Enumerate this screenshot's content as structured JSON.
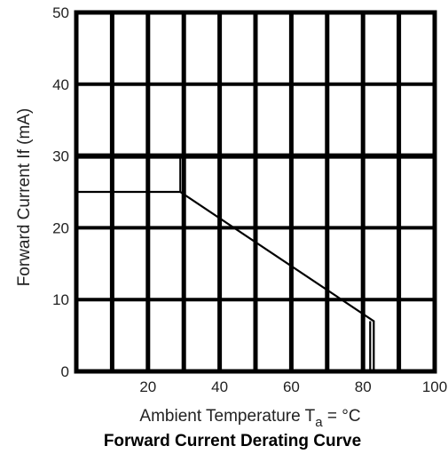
{
  "chart_data": {
    "type": "line",
    "title": "Forward Current Derating Curve",
    "xlabel": {
      "main": "Ambient Temperature T",
      "subscript": "a",
      "suffix": " = °C"
    },
    "ylabel": "Forward Current If (mA)",
    "xlim": [
      0,
      100
    ],
    "ylim": [
      0,
      50
    ],
    "x_ticks": [
      {
        "value": 20,
        "label": "20"
      },
      {
        "value": 40,
        "label": "40"
      },
      {
        "value": 60,
        "label": "60"
      },
      {
        "value": 80,
        "label": "80"
      },
      {
        "value": 100,
        "label": "100"
      }
    ],
    "y_ticks": [
      {
        "value": 0,
        "label": "0"
      },
      {
        "value": 10,
        "label": "10"
      },
      {
        "value": 20,
        "label": "20"
      },
      {
        "value": 30,
        "label": "30"
      },
      {
        "value": 40,
        "label": "40"
      },
      {
        "value": 50,
        "label": "50"
      }
    ],
    "grid": true,
    "grid_x_values": [
      10,
      20,
      30,
      40,
      50,
      60,
      70,
      80,
      90
    ],
    "grid_y_values": [
      10,
      20,
      30,
      40
    ],
    "series": [
      {
        "x": [
          0,
          29,
          83,
          83,
          82,
          82
        ],
        "y": [
          25,
          25,
          7,
          0,
          0,
          7
        ],
        "color": "#000000"
      }
    ],
    "annotation_segments": [
      {
        "x": [
          29,
          29
        ],
        "y": [
          25,
          30
        ],
        "color": "#000000"
      }
    ]
  }
}
